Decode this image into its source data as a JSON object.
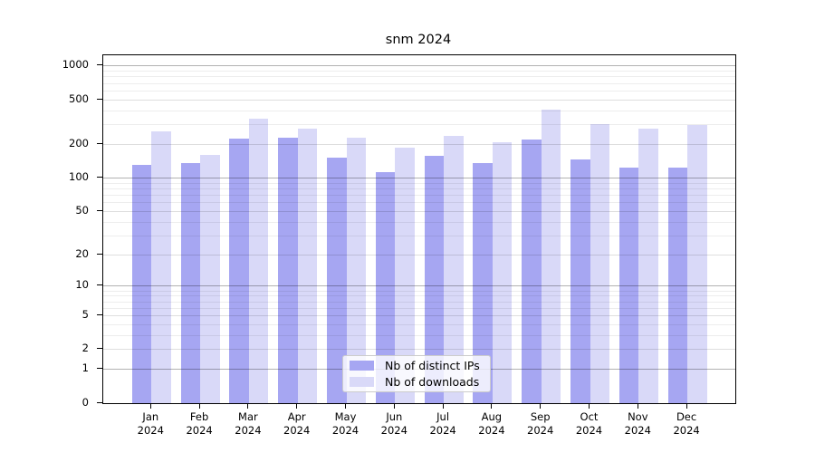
{
  "chart_data": {
    "type": "bar",
    "title": "snm 2024",
    "categories": [
      {
        "month": "Jan",
        "year": "2024"
      },
      {
        "month": "Feb",
        "year": "2024"
      },
      {
        "month": "Mar",
        "year": "2024"
      },
      {
        "month": "Apr",
        "year": "2024"
      },
      {
        "month": "May",
        "year": "2024"
      },
      {
        "month": "Jun",
        "year": "2024"
      },
      {
        "month": "Jul",
        "year": "2024"
      },
      {
        "month": "Aug",
        "year": "2024"
      },
      {
        "month": "Sep",
        "year": "2024"
      },
      {
        "month": "Oct",
        "year": "2024"
      },
      {
        "month": "Nov",
        "year": "2024"
      },
      {
        "month": "Dec",
        "year": "2024"
      }
    ],
    "series": [
      {
        "name": "Nb of distinct IPs",
        "color": "#a6a6f2",
        "values": [
          130,
          136,
          225,
          228,
          153,
          112,
          158,
          137,
          221,
          147,
          123,
          125
        ]
      },
      {
        "name": "Nb of downloads",
        "color": "#d9d9f8",
        "values": [
          260,
          162,
          340,
          275,
          228,
          187,
          238,
          210,
          410,
          305,
          277,
          300
        ]
      }
    ],
    "yscale": "log10(1+x)",
    "yticks": [
      0,
      1,
      2,
      5,
      10,
      20,
      50,
      100,
      200,
      500,
      1000
    ],
    "ylim": [
      0,
      1250
    ],
    "xlabel": "",
    "ylabel": "",
    "grid": "horizontal",
    "legend_position": "lower center",
    "style": {
      "decade_gridline": "#b3b3b3",
      "major_gridline": "#e0e0e0",
      "minor_gridline": "#ededed",
      "spine": "#000000",
      "background": "#ffffff"
    }
  }
}
